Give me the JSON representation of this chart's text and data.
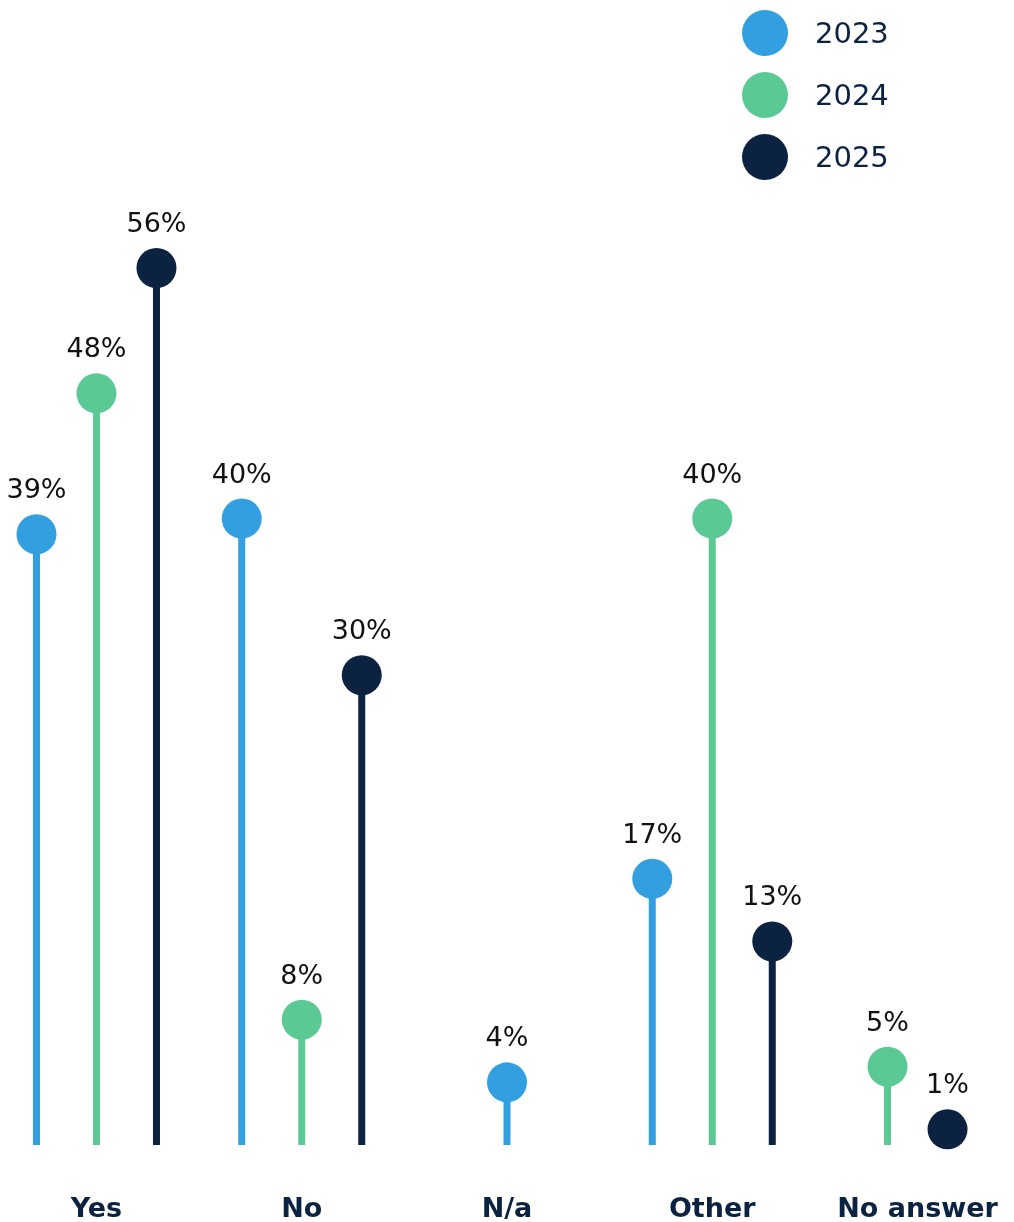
{
  "chart_data": {
    "type": "lollipop",
    "categories": [
      "Yes",
      "No",
      "N/a",
      "Other",
      "No answer"
    ],
    "series": [
      {
        "name": "2023",
        "color": "#319fe0",
        "values": [
          39,
          40,
          4,
          17,
          null
        ],
        "value_labels": [
          "39%",
          "40%",
          "4%",
          "17%",
          null
        ]
      },
      {
        "name": "2024",
        "color": "#5bc994",
        "values": [
          48,
          8,
          null,
          40,
          5
        ],
        "value_labels": [
          "48%",
          "8%",
          null,
          "40%",
          "5%"
        ]
      },
      {
        "name": "2025",
        "color": "#0b2240",
        "values": [
          56,
          30,
          null,
          13,
          1
        ],
        "value_labels": [
          "56%",
          "30%",
          null,
          "13%",
          "1%"
        ]
      }
    ],
    "legend": "top right",
    "marker": "circle"
  }
}
